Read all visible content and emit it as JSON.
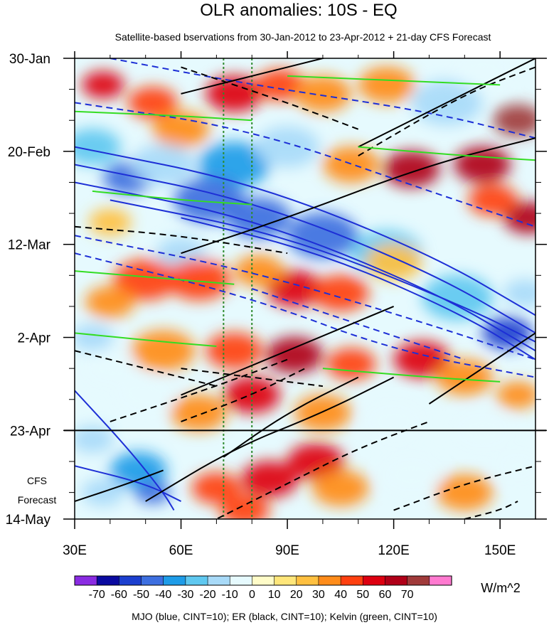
{
  "chart_data": {
    "type": "heatmap",
    "title": "OLR anomalies: 10S - EQ",
    "subtitle": "Satellite-based bservations from 30-Jan-2012 to 23-Apr-2012 + 21-day CFS Forecast",
    "x_axis": {
      "range_deg": [
        30,
        160
      ],
      "ticks": [
        {
          "value": 30,
          "label": "30E"
        },
        {
          "value": 60,
          "label": "60E"
        },
        {
          "value": 90,
          "label": "90E"
        },
        {
          "value": 120,
          "label": "120E"
        },
        {
          "value": 150,
          "label": "150E"
        }
      ]
    },
    "y_axis": {
      "range_days": [
        0,
        104
      ],
      "direction": "time increases downward",
      "ticks": [
        {
          "value": 0,
          "label": "30-Jan"
        },
        {
          "value": 21,
          "label": "20-Feb"
        },
        {
          "value": 42,
          "label": "12-Mar"
        },
        {
          "value": 63,
          "label": "2-Apr"
        },
        {
          "value": 84,
          "label": "23-Apr"
        },
        {
          "value": 105,
          "label": "14-May"
        }
      ],
      "forecast_start_day": 84,
      "forecast_label_lines": [
        "CFS",
        "Forecast"
      ]
    },
    "reference_longitudes": [
      72,
      80
    ],
    "colorbar": {
      "unit": "W/m^2",
      "levels": [
        -70,
        -60,
        -50,
        -40,
        -30,
        -20,
        -10,
        0,
        10,
        20,
        30,
        40,
        50,
        60,
        70
      ],
      "labels": [
        "-70",
        "-60",
        "-50",
        "-40",
        "-30",
        "-20",
        "-10",
        "0",
        "10",
        "20",
        "30",
        "40",
        "50",
        "60",
        "70"
      ],
      "colors": [
        "#8a2be2",
        "#0a0aa0",
        "#1c3fcf",
        "#3d6fe0",
        "#1e9ce8",
        "#5fc8f0",
        "#a8daf8",
        "#e6fafe",
        "#fffcc8",
        "#ffe67a",
        "#ffc040",
        "#ff8c1a",
        "#ff4010",
        "#dd0010",
        "#b00018",
        "#a03a3a",
        "#ff7ad0"
      ]
    },
    "footer": "MJO (blue, CINT=10); ER (black, CINT=10); Kelvin (green, CINT=10)",
    "blobs": [
      {
        "lon": 38,
        "day": 6,
        "v": 45,
        "r": 6
      },
      {
        "lon": 52,
        "day": 10,
        "v": 30,
        "r": 7
      },
      {
        "lon": 75,
        "day": 8,
        "v": 40,
        "r": 8
      },
      {
        "lon": 88,
        "day": 6,
        "v": 30,
        "r": 7
      },
      {
        "lon": 60,
        "day": 16,
        "v": 25,
        "r": 8
      },
      {
        "lon": 100,
        "day": 8,
        "v": 25,
        "r": 8
      },
      {
        "lon": 118,
        "day": 6,
        "v": 20,
        "r": 8
      },
      {
        "lon": 135,
        "day": 10,
        "v": -25,
        "r": 10
      },
      {
        "lon": 145,
        "day": 3,
        "v": -20,
        "r": 8
      },
      {
        "lon": 155,
        "day": 14,
        "v": 60,
        "r": 7
      },
      {
        "lon": 145,
        "day": 24,
        "v": 50,
        "r": 8
      },
      {
        "lon": 125,
        "day": 25,
        "v": 55,
        "r": 8
      },
      {
        "lon": 108,
        "day": 24,
        "v": 20,
        "r": 8
      },
      {
        "lon": 158,
        "day": 36,
        "v": 55,
        "r": 7
      },
      {
        "lon": 148,
        "day": 32,
        "v": 35,
        "r": 7
      },
      {
        "lon": 35,
        "day": 20,
        "v": -40,
        "r": 8
      },
      {
        "lon": 45,
        "day": 27,
        "v": -55,
        "r": 7
      },
      {
        "lon": 55,
        "day": 24,
        "v": -30,
        "r": 9
      },
      {
        "lon": 75,
        "day": 24,
        "v": -50,
        "r": 10
      },
      {
        "lon": 90,
        "day": 20,
        "v": -30,
        "r": 9
      },
      {
        "lon": 68,
        "day": 32,
        "v": -55,
        "r": 10
      },
      {
        "lon": 82,
        "day": 36,
        "v": -60,
        "r": 9
      },
      {
        "lon": 100,
        "day": 40,
        "v": -55,
        "r": 10
      },
      {
        "lon": 118,
        "day": 44,
        "v": -40,
        "r": 10
      },
      {
        "lon": 138,
        "day": 54,
        "v": -40,
        "r": 10
      },
      {
        "lon": 152,
        "day": 62,
        "v": -65,
        "r": 7
      },
      {
        "lon": 157,
        "day": 53,
        "v": -30,
        "r": 6
      },
      {
        "lon": 60,
        "day": 44,
        "v": -25,
        "r": 7
      },
      {
        "lon": 40,
        "day": 37,
        "v": 15,
        "r": 6
      },
      {
        "lon": 50,
        "day": 50,
        "v": 35,
        "r": 9
      },
      {
        "lon": 65,
        "day": 50,
        "v": 30,
        "r": 9
      },
      {
        "lon": 92,
        "day": 52,
        "v": 45,
        "r": 8
      },
      {
        "lon": 105,
        "day": 53,
        "v": 30,
        "r": 8
      },
      {
        "lon": 82,
        "day": 48,
        "v": 25,
        "r": 7
      },
      {
        "lon": 120,
        "day": 46,
        "v": 15,
        "r": 8
      },
      {
        "lon": 40,
        "day": 55,
        "v": 20,
        "r": 7
      },
      {
        "lon": 55,
        "day": 66,
        "v": 25,
        "r": 9
      },
      {
        "lon": 40,
        "day": 70,
        "v": -20,
        "r": 7
      },
      {
        "lon": 35,
        "day": 63,
        "v": -25,
        "r": 6
      },
      {
        "lon": 75,
        "day": 66,
        "v": 35,
        "r": 8
      },
      {
        "lon": 92,
        "day": 67,
        "v": 50,
        "r": 8
      },
      {
        "lon": 108,
        "day": 69,
        "v": 30,
        "r": 7
      },
      {
        "lon": 128,
        "day": 68,
        "v": 40,
        "r": 8
      },
      {
        "lon": 140,
        "day": 72,
        "v": 25,
        "r": 8
      },
      {
        "lon": 155,
        "day": 76,
        "v": 20,
        "r": 6
      },
      {
        "lon": 50,
        "day": 76,
        "v": -20,
        "r": 8
      },
      {
        "lon": 65,
        "day": 80,
        "v": 25,
        "r": 8
      },
      {
        "lon": 80,
        "day": 76,
        "v": 45,
        "r": 8
      },
      {
        "lon": 100,
        "day": 80,
        "v": 20,
        "r": 8
      },
      {
        "lon": 120,
        "day": 82,
        "v": -15,
        "r": 8
      },
      {
        "lon": 145,
        "day": 84,
        "v": -15,
        "r": 8
      },
      {
        "lon": 35,
        "day": 86,
        "v": -25,
        "r": 6
      },
      {
        "lon": 48,
        "day": 93,
        "v": -50,
        "r": 8
      },
      {
        "lon": 52,
        "day": 98,
        "v": -60,
        "r": 5
      },
      {
        "lon": 38,
        "day": 98,
        "v": -30,
        "r": 6
      },
      {
        "lon": 70,
        "day": 97,
        "v": 35,
        "r": 7
      },
      {
        "lon": 85,
        "day": 95,
        "v": 40,
        "r": 8
      },
      {
        "lon": 98,
        "day": 91,
        "v": 45,
        "r": 8
      },
      {
        "lon": 78,
        "day": 102,
        "v": 30,
        "r": 7
      },
      {
        "lon": 105,
        "day": 97,
        "v": 20,
        "r": 8
      },
      {
        "lon": 125,
        "day": 94,
        "v": -20,
        "r": 8
      },
      {
        "lon": 140,
        "day": 98,
        "v": 20,
        "r": 8
      },
      {
        "lon": 155,
        "day": 92,
        "v": -15,
        "r": 6
      }
    ],
    "contours": {
      "mjo_blue": [
        {
          "pts": [
            [
              30,
              20
            ],
            [
              80,
              28
            ],
            [
              130,
              44
            ],
            [
              160,
              58
            ]
          ],
          "dash": false
        },
        {
          "pts": [
            [
              30,
              24
            ],
            [
              80,
              32
            ],
            [
              130,
              48
            ],
            [
              160,
              62
            ]
          ],
          "dash": false
        },
        {
          "pts": [
            [
              30,
              28
            ],
            [
              80,
              36
            ],
            [
              130,
              52
            ],
            [
              160,
              66
            ]
          ],
          "dash": false
        },
        {
          "pts": [
            [
              40,
              32
            ],
            [
              90,
              40
            ],
            [
              140,
              56
            ],
            [
              160,
              64
            ]
          ],
          "dash": false
        },
        {
          "pts": [
            [
              60,
              36
            ],
            [
              100,
              44
            ],
            [
              140,
              58
            ],
            [
              160,
              68
            ]
          ],
          "dash": false
        },
        {
          "pts": [
            [
              30,
              10
            ],
            [
              80,
              16
            ],
            [
              130,
              30
            ],
            [
              160,
              38
            ]
          ],
          "dash": true
        },
        {
          "pts": [
            [
              30,
              40
            ],
            [
              80,
              48
            ],
            [
              130,
              60
            ],
            [
              160,
              68
            ]
          ],
          "dash": true
        },
        {
          "pts": [
            [
              30,
              44
            ],
            [
              80,
              54
            ],
            [
              120,
              66
            ],
            [
              160,
              72
            ]
          ],
          "dash": true
        },
        {
          "pts": [
            [
              80,
              52
            ],
            [
              110,
              60
            ],
            [
              140,
              68
            ]
          ],
          "dash": true
        },
        {
          "pts": [
            [
              30,
              75
            ],
            [
              45,
              88
            ],
            [
              55,
              98
            ],
            [
              58,
              102
            ]
          ],
          "dash": false
        },
        {
          "pts": [
            [
              30,
              92
            ],
            [
              50,
              96
            ],
            [
              60,
              100
            ]
          ],
          "dash": false
        },
        {
          "pts": [
            [
              40,
              0
            ],
            [
              80,
              6
            ],
            [
              130,
              12
            ],
            [
              160,
              18
            ]
          ],
          "dash": true
        }
      ],
      "er_black": [
        {
          "pts": [
            [
              60,
              8
            ],
            [
              90,
              2
            ],
            [
              110,
              -2
            ]
          ],
          "dash": false
        },
        {
          "pts": [
            [
              110,
              20
            ],
            [
              140,
              8
            ],
            [
              160,
              0
            ]
          ],
          "dash": false
        },
        {
          "pts": [
            [
              60,
              44
            ],
            [
              90,
              36
            ],
            [
              130,
              24
            ],
            [
              160,
              18
            ]
          ],
          "dash": false
        },
        {
          "pts": [
            [
              130,
              78
            ],
            [
              145,
              70
            ],
            [
              160,
              62
            ]
          ],
          "dash": false
        },
        {
          "pts": [
            [
              110,
              22
            ],
            [
              140,
              8
            ],
            [
              160,
              2
            ]
          ],
          "dash": true
        },
        {
          "pts": [
            [
              60,
              76
            ],
            [
              90,
              66
            ],
            [
              120,
              56
            ]
          ],
          "dash": false
        },
        {
          "pts": [
            [
              72,
              90
            ],
            [
              90,
              80
            ],
            [
              110,
              72
            ]
          ],
          "dash": false
        },
        {
          "pts": [
            [
              50,
              100
            ],
            [
              75,
              88
            ],
            [
              100,
              80
            ],
            [
              120,
              72
            ]
          ],
          "dash": false
        },
        {
          "pts": [
            [
              30,
              100
            ],
            [
              45,
              96
            ],
            [
              55,
              93
            ]
          ],
          "dash": false
        },
        {
          "pts": [
            [
              40,
              82
            ],
            [
              70,
              74
            ],
            [
              90,
              68
            ]
          ],
          "dash": true
        },
        {
          "pts": [
            [
              65,
              106
            ],
            [
              90,
              96
            ],
            [
              110,
              88
            ],
            [
              130,
              82
            ]
          ],
          "dash": true
        },
        {
          "pts": [
            [
              60,
              82
            ],
            [
              80,
              76
            ],
            [
              95,
              70
            ]
          ],
          "dash": true
        },
        {
          "pts": [
            [
              120,
              102
            ],
            [
              140,
              96
            ],
            [
              160,
              92
            ]
          ],
          "dash": true
        },
        {
          "pts": [
            [
              140,
              104
            ],
            [
              150,
              102
            ],
            [
              155,
              100
            ]
          ],
          "dash": true
        },
        {
          "pts": [
            [
              60,
              2
            ],
            [
              90,
              10
            ],
            [
              110,
              16
            ]
          ],
          "dash": true
        },
        {
          "pts": [
            [
              30,
              38
            ],
            [
              60,
              40
            ],
            [
              90,
              44
            ]
          ],
          "dash": true
        },
        {
          "pts": [
            [
              30,
              66
            ],
            [
              50,
              70
            ],
            [
              70,
              74
            ]
          ],
          "dash": true
        },
        {
          "pts": [
            [
              60,
              70
            ],
            [
              80,
              72
            ],
            [
              100,
              74
            ]
          ],
          "dash": true
        }
      ],
      "kelvin_green": [
        {
          "pts": [
            [
              30,
              12
            ],
            [
              60,
              13
            ],
            [
              80,
              14
            ]
          ],
          "dash": false
        },
        {
          "pts": [
            [
              35,
              30
            ],
            [
              60,
              32
            ],
            [
              80,
              33
            ]
          ],
          "dash": false
        },
        {
          "pts": [
            [
              30,
              48
            ],
            [
              60,
              50
            ],
            [
              75,
              51
            ]
          ],
          "dash": false
        },
        {
          "pts": [
            [
              30,
              62
            ],
            [
              55,
              64
            ],
            [
              70,
              65
            ]
          ],
          "dash": false
        },
        {
          "pts": [
            [
              90,
              4
            ],
            [
              120,
              5
            ],
            [
              150,
              6
            ]
          ],
          "dash": false
        },
        {
          "pts": [
            [
              100,
              70
            ],
            [
              130,
              72
            ],
            [
              150,
              73
            ]
          ],
          "dash": false
        },
        {
          "pts": [
            [
              110,
              20
            ],
            [
              140,
              22
            ],
            [
              160,
              23
            ]
          ],
          "dash": false
        }
      ]
    }
  }
}
